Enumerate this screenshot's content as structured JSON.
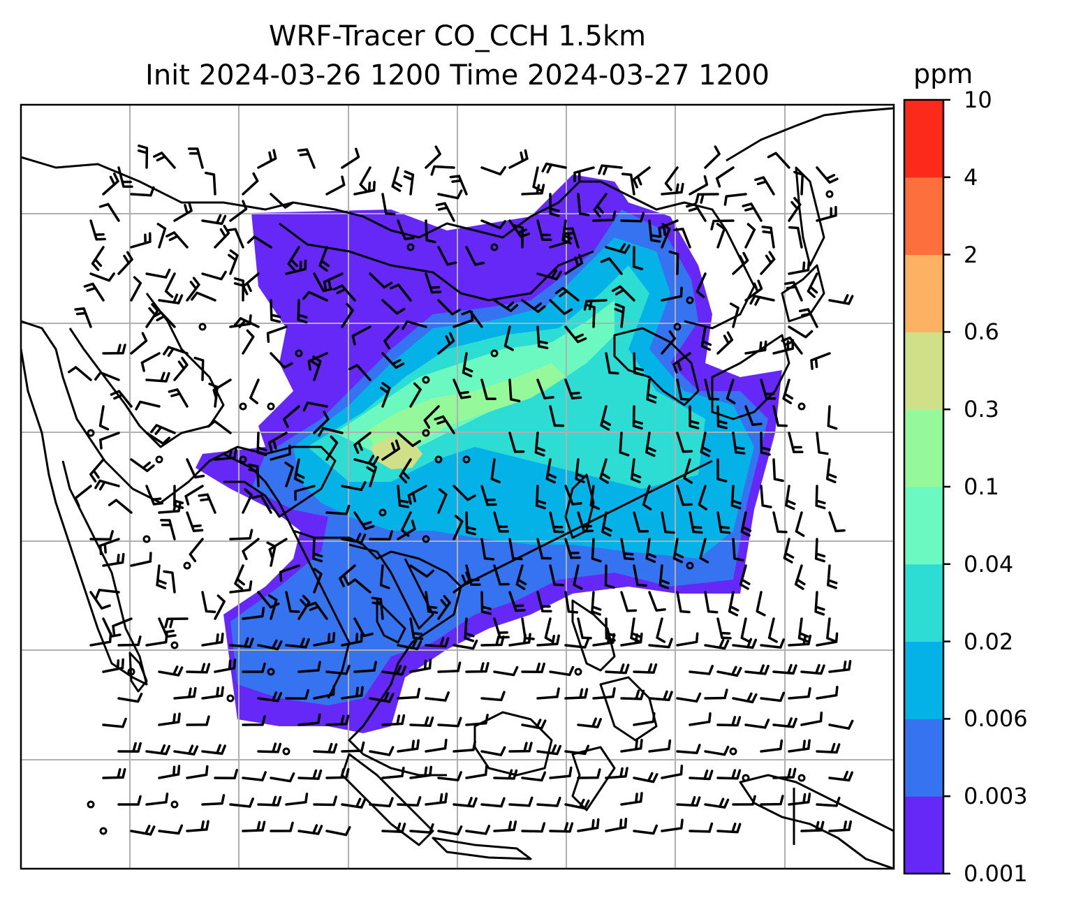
{
  "title": {
    "line1": "WRF-Tracer CO_CCH 1.5km",
    "line2": "Init 2024-03-26 1200 Time 2024-03-27 1200"
  },
  "colorbar": {
    "unit": "ppm",
    "levels": [
      "0.001",
      "0.003",
      "0.006",
      "0.02",
      "0.04",
      "0.1",
      "0.3",
      "0.6",
      "2",
      "4",
      "10"
    ],
    "colors": [
      "#6528f7",
      "#3673f0",
      "#05b2e8",
      "#2ddcd3",
      "#6cf9c1",
      "#95f89a",
      "#cfe088",
      "#fdb263",
      "#fd6f3c",
      "#fc2a1b"
    ]
  },
  "map": {
    "gridlines": true,
    "gridline_color": "#b0b0b0",
    "features": [
      "coastlines",
      "country-borders",
      "wind-barbs",
      "tracer-concentration"
    ]
  }
}
